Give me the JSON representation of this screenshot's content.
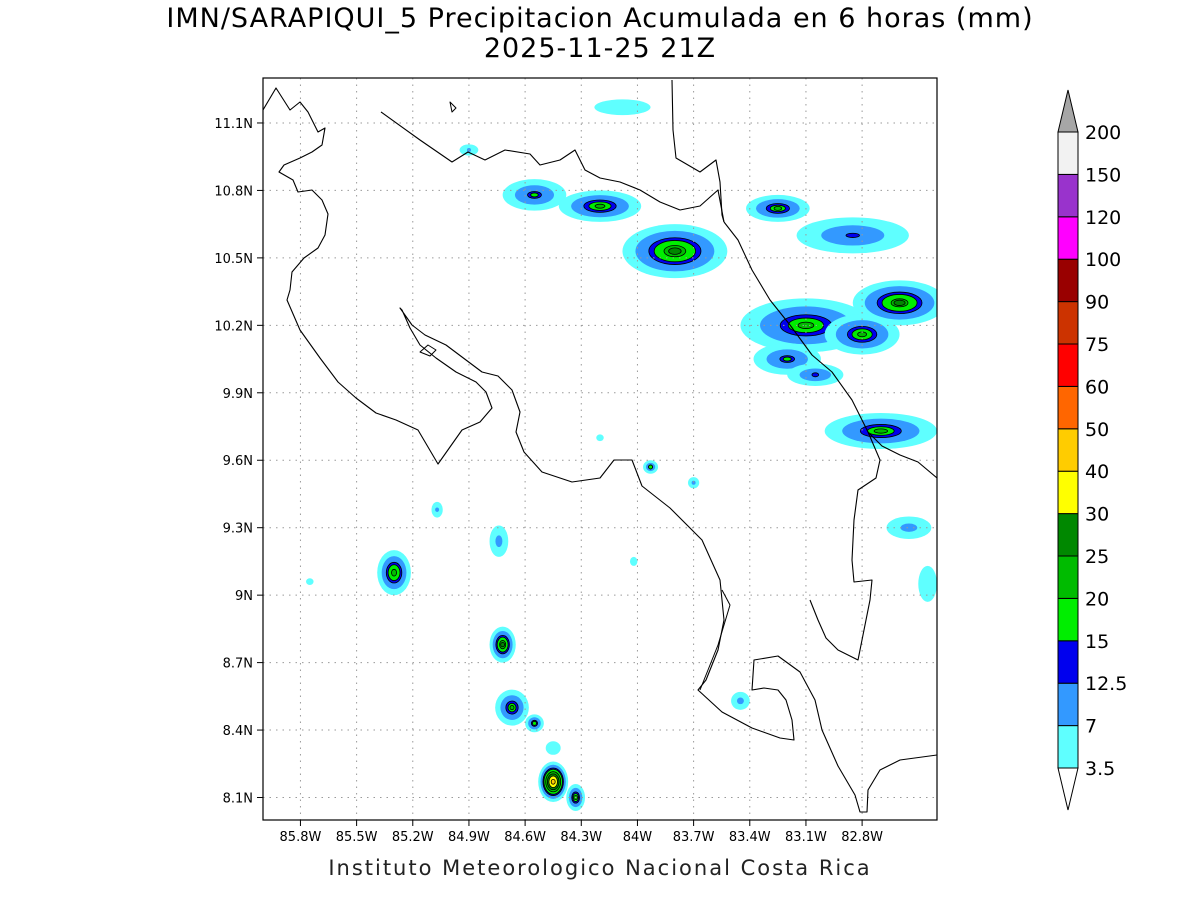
{
  "map": {
    "title_line1": "IMN/SARAPIQUI_5 Precipitacion Acumulada en 6 horas (mm)",
    "title_line2": "2025-11-25 21Z",
    "footer": "Instituto Meteorologico Nacional Costa Rica",
    "bounds": {
      "lon_min": -86.0,
      "lon_max": -82.4,
      "lat_min": 8.0,
      "lat_max": 11.3
    },
    "lon_ticks": [
      {
        "value": -85.8,
        "label": "85.8W"
      },
      {
        "value": -85.5,
        "label": "85.5W"
      },
      {
        "value": -85.2,
        "label": "85.2W"
      },
      {
        "value": -84.9,
        "label": "84.9W"
      },
      {
        "value": -84.6,
        "label": "84.6W"
      },
      {
        "value": -84.3,
        "label": "84.3W"
      },
      {
        "value": -84.0,
        "label": "84W"
      },
      {
        "value": -83.7,
        "label": "83.7W"
      },
      {
        "value": -83.4,
        "label": "83.4W"
      },
      {
        "value": -83.1,
        "label": "83.1W"
      },
      {
        "value": -82.8,
        "label": "82.8W"
      }
    ],
    "lat_ticks": [
      {
        "value": 11.1,
        "label": "11.1N"
      },
      {
        "value": 10.8,
        "label": "10.8N"
      },
      {
        "value": 10.5,
        "label": "10.5N"
      },
      {
        "value": 10.2,
        "label": "10.2N"
      },
      {
        "value": 9.9,
        "label": "9.9N"
      },
      {
        "value": 9.6,
        "label": "9.6N"
      },
      {
        "value": 9.3,
        "label": "9.3N"
      },
      {
        "value": 9.0,
        "label": "9N"
      },
      {
        "value": 8.7,
        "label": "8.7N"
      },
      {
        "value": 8.4,
        "label": "8.4N"
      },
      {
        "value": 8.1,
        "label": "8.1N"
      }
    ],
    "grid": true
  },
  "colorbar": {
    "placement": "right",
    "levels": [
      "3.5",
      "7",
      "12.5",
      "15",
      "20",
      "25",
      "30",
      "40",
      "50",
      "60",
      "75",
      "90",
      "100",
      "120",
      "150",
      "200"
    ],
    "colors": [
      "#5fffff",
      "#3399ff",
      "#0000ee",
      "#00ee00",
      "#00bb00",
      "#008800",
      "#ffff00",
      "#ffcc00",
      "#ff6600",
      "#ff0000",
      "#cc3300",
      "#990000",
      "#ff00ff",
      "#9933cc",
      "#f2f2f2"
    ],
    "below_color": "#ffffff",
    "above_color": "#a6a6a6"
  },
  "precip_cells": [
    {
      "lon": -84.55,
      "lat": 10.78,
      "rx": 0.17,
      "ry": 0.07,
      "max": 16
    },
    {
      "lon": -84.2,
      "lat": 10.73,
      "rx": 0.22,
      "ry": 0.07,
      "max": 21
    },
    {
      "lon": -83.8,
      "lat": 10.53,
      "rx": 0.28,
      "ry": 0.12,
      "max": 26
    },
    {
      "lon": -83.25,
      "lat": 10.72,
      "rx": 0.17,
      "ry": 0.06,
      "max": 20
    },
    {
      "lon": -82.85,
      "lat": 10.6,
      "rx": 0.3,
      "ry": 0.08,
      "max": 14
    },
    {
      "lon": -82.6,
      "lat": 10.3,
      "rx": 0.25,
      "ry": 0.1,
      "max": 25
    },
    {
      "lon": -83.1,
      "lat": 10.2,
      "rx": 0.35,
      "ry": 0.12,
      "max": 21
    },
    {
      "lon": -82.8,
      "lat": 10.16,
      "rx": 0.2,
      "ry": 0.09,
      "max": 21
    },
    {
      "lon": -83.2,
      "lat": 10.05,
      "rx": 0.18,
      "ry": 0.07,
      "max": 16
    },
    {
      "lon": -83.05,
      "lat": 9.98,
      "rx": 0.15,
      "ry": 0.05,
      "max": 14
    },
    {
      "lon": -82.7,
      "lat": 9.73,
      "rx": 0.3,
      "ry": 0.08,
      "max": 20
    },
    {
      "lon": -83.93,
      "lat": 9.57,
      "rx": 0.04,
      "ry": 0.03,
      "max": 16
    },
    {
      "lon": -85.3,
      "lat": 9.1,
      "rx": 0.09,
      "ry": 0.1,
      "max": 24
    },
    {
      "lon": -84.74,
      "lat": 9.24,
      "rx": 0.05,
      "ry": 0.07,
      "max": 10
    },
    {
      "lon": -84.72,
      "lat": 8.78,
      "rx": 0.07,
      "ry": 0.08,
      "max": 27
    },
    {
      "lon": -84.67,
      "lat": 8.5,
      "rx": 0.09,
      "ry": 0.08,
      "max": 20
    },
    {
      "lon": -84.55,
      "lat": 8.43,
      "rx": 0.05,
      "ry": 0.04,
      "max": 19
    },
    {
      "lon": -84.45,
      "lat": 8.17,
      "rx": 0.08,
      "ry": 0.09,
      "max": 45
    },
    {
      "lon": -84.33,
      "lat": 8.1,
      "rx": 0.05,
      "ry": 0.06,
      "max": 22
    },
    {
      "lon": -83.45,
      "lat": 8.53,
      "rx": 0.05,
      "ry": 0.04,
      "max": 10
    },
    {
      "lon": -82.55,
      "lat": 9.3,
      "rx": 0.12,
      "ry": 0.05,
      "max": 10
    },
    {
      "lon": -84.02,
      "lat": 9.15,
      "rx": 0.02,
      "ry": 0.02,
      "max": 5
    },
    {
      "lon": -84.08,
      "lat": 11.17,
      "rx": 0.15,
      "ry": 0.035,
      "max": 5
    },
    {
      "lon": -84.9,
      "lat": 10.98,
      "rx": 0.05,
      "ry": 0.025,
      "max": 8
    },
    {
      "lon": -84.2,
      "lat": 9.7,
      "rx": 0.02,
      "ry": 0.015,
      "max": 5
    },
    {
      "lon": -85.07,
      "lat": 9.38,
      "rx": 0.03,
      "ry": 0.035,
      "max": 9
    },
    {
      "lon": -83.7,
      "lat": 9.5,
      "rx": 0.03,
      "ry": 0.025,
      "max": 8
    },
    {
      "lon": -82.45,
      "lat": 9.05,
      "rx": 0.05,
      "ry": 0.08,
      "max": 5
    },
    {
      "lon": -85.75,
      "lat": 9.06,
      "rx": 0.02,
      "ry": 0.015,
      "max": 4
    },
    {
      "lon": -84.45,
      "lat": 8.32,
      "rx": 0.04,
      "ry": 0.03,
      "max": 6
    }
  ]
}
